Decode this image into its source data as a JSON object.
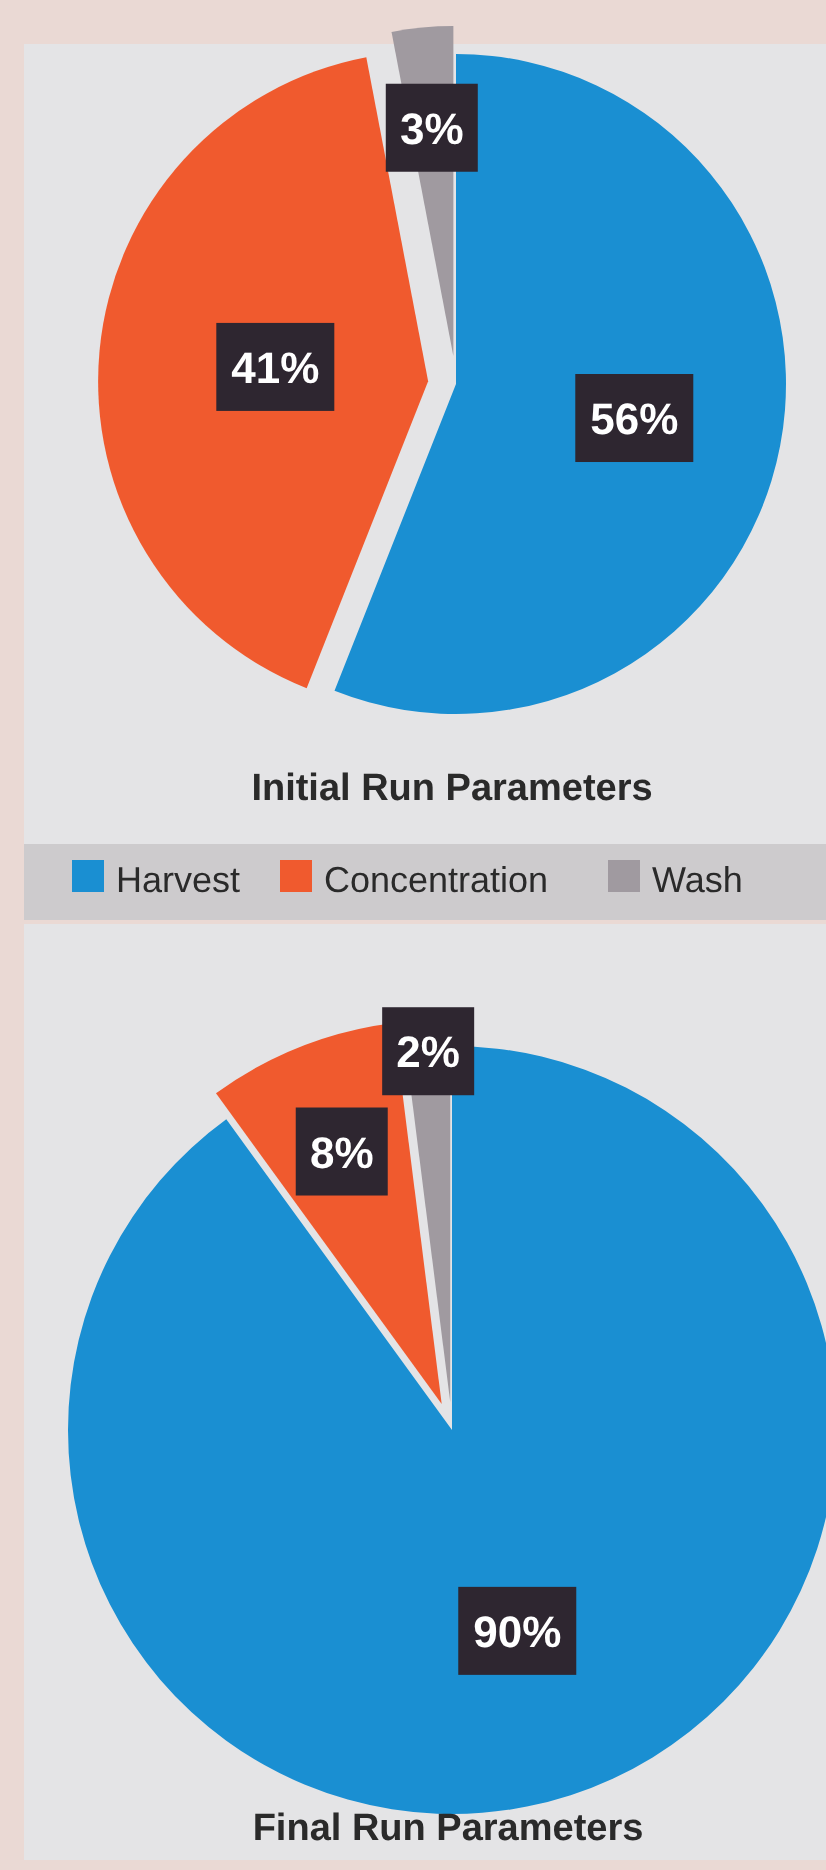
{
  "chart_data": [
    {
      "type": "pie",
      "title": "Initial Run Parameters",
      "categories": [
        "Harvest",
        "Concentration",
        "Wash"
      ],
      "values": [
        56,
        41,
        3
      ],
      "value_labels": [
        "56%",
        "41%",
        "3%"
      ],
      "colors": [
        "#1a8fd2",
        "#f05a2e",
        "#a09aa0"
      ],
      "legend": "bottom"
    },
    {
      "type": "pie",
      "title": "Final Run Parameters",
      "categories": [
        null,
        null,
        null
      ],
      "values": [
        90,
        8,
        2
      ],
      "value_labels": [
        "90%",
        "8%",
        "2%"
      ],
      "colors": [
        "#1a8fd2",
        "#f05a2e",
        "#a09aa0"
      ]
    }
  ]
}
